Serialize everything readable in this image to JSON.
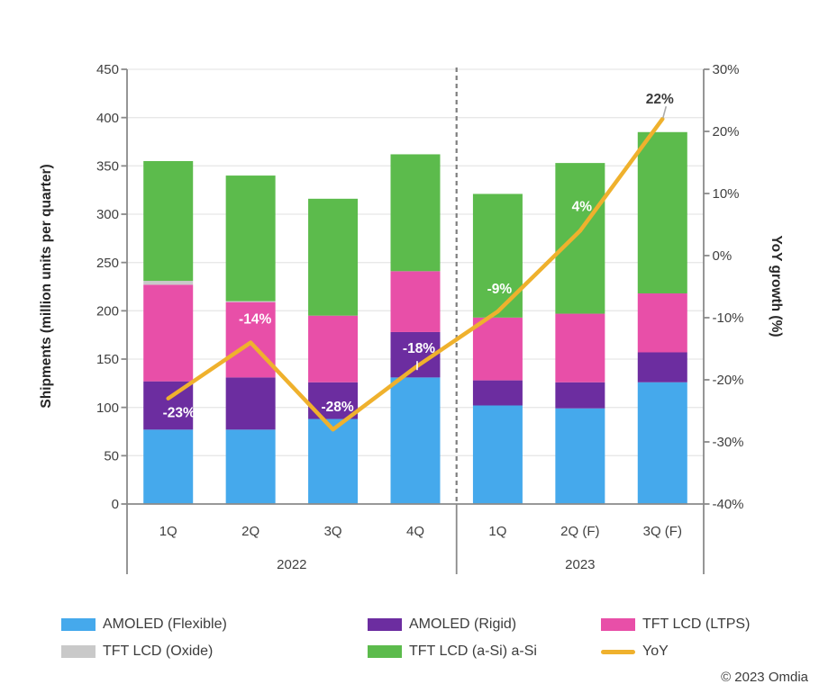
{
  "copyright": "© 2023 Omdia",
  "chart_data": {
    "type": "bar",
    "subtype": "stacked-bar-with-line",
    "title": "",
    "categories": [
      "1Q",
      "2Q",
      "3Q",
      "4Q",
      "1Q",
      "2Q (F)",
      "3Q (F)"
    ],
    "groups": [
      {
        "label": "2022",
        "count": 4
      },
      {
        "label": "2023",
        "count": 3
      }
    ],
    "series": [
      {
        "name": "AMOLED (Flexible)",
        "color": "#45A9EC",
        "values": [
          77,
          77,
          88,
          131,
          102,
          99,
          126
        ]
      },
      {
        "name": "AMOLED (Rigid)",
        "color": "#6C2DA0",
        "values": [
          50,
          54,
          38,
          47,
          26,
          27,
          31
        ]
      },
      {
        "name": "TFT LCD (LTPS)",
        "color": "#E84FA8",
        "values": [
          100,
          78,
          69,
          63,
          65,
          71,
          61
        ]
      },
      {
        "name": "TFT LCD (Oxide)",
        "color": "#C9C9C9",
        "values": [
          4,
          1,
          0,
          0,
          0,
          0,
          0
        ]
      },
      {
        "name": "TFT LCD (a-Si) a-Si",
        "color": "#5CBB4C",
        "values": [
          124,
          130,
          121,
          121,
          128,
          156,
          167
        ]
      }
    ],
    "bar_totals": [
      355,
      340,
      316,
      362,
      321,
      353,
      385
    ],
    "line_series": {
      "name": "YoY",
      "color": "#EFB12D",
      "values": [
        -23,
        -14,
        -28,
        -18,
        -9,
        4,
        22
      ],
      "labels": [
        "-23%",
        "-14%",
        "-28%",
        "-18%",
        "-9%",
        "4%",
        "22%"
      ]
    },
    "left_axis": {
      "title": "Shipments (million units per quarter)",
      "min": 0,
      "max": 450,
      "ticks": [
        450,
        400,
        350,
        300,
        250,
        200,
        150,
        100,
        50,
        0
      ]
    },
    "right_axis": {
      "title": "YoY growth (%)",
      "min": -40,
      "max": 30,
      "ticks": [
        30,
        20,
        10,
        0,
        -10,
        -20,
        -30,
        -40
      ],
      "suffix": "%"
    },
    "grid": true,
    "divider_after_category": 4,
    "legend_position": "bottom"
  },
  "legend": {
    "items": [
      {
        "label": "AMOLED (Flexible)",
        "color": "#45A9EC",
        "swatch": "box"
      },
      {
        "label": "AMOLED (Rigid)",
        "color": "#6C2DA0",
        "swatch": "box"
      },
      {
        "label": "TFT LCD (LTPS)",
        "color": "#E84FA8",
        "swatch": "box"
      },
      {
        "label": "TFT LCD (Oxide)",
        "color": "#C9C9C9",
        "swatch": "box"
      },
      {
        "label": "TFT LCD (a-Si) a-Si",
        "color": "#5CBB4C",
        "swatch": "box"
      },
      {
        "label": "YoY",
        "color": "#EFB12D",
        "swatch": "line"
      }
    ]
  }
}
